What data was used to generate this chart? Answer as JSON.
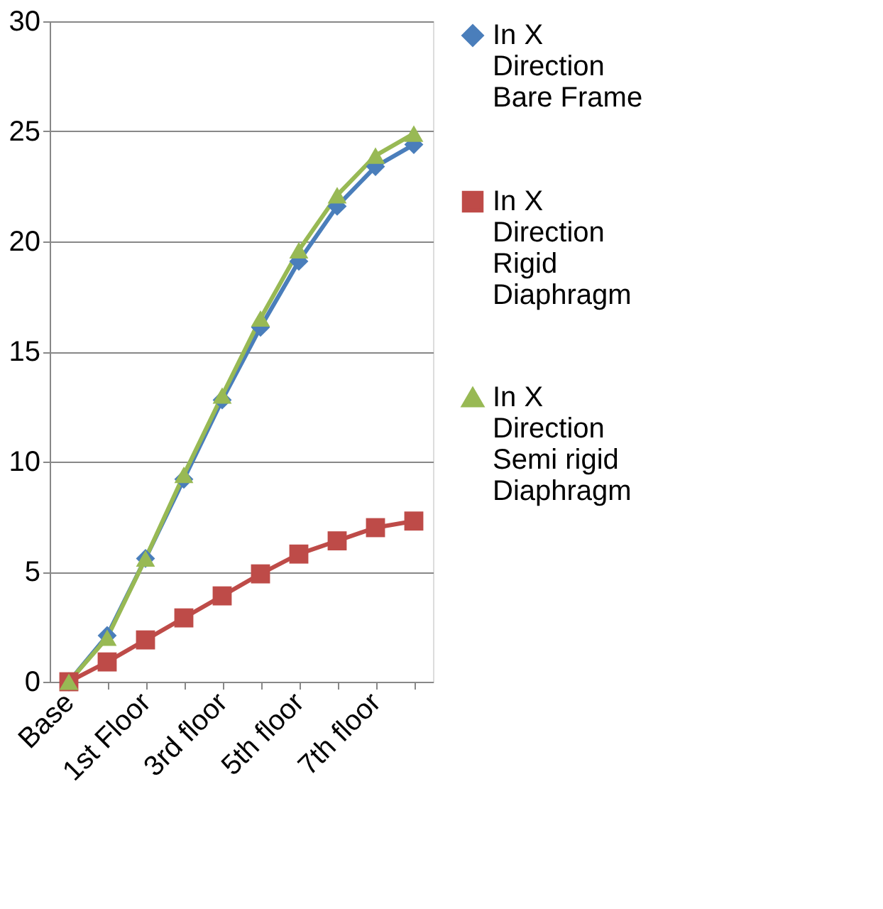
{
  "chart_data": {
    "type": "line",
    "categories": [
      "Base",
      null,
      "1st Floor",
      null,
      "3rd floor",
      null,
      "5th floor",
      null,
      "7th floor",
      null
    ],
    "series": [
      {
        "name": "In X Direction Bare Frame",
        "color": "#4a7ebb",
        "marker": "diamond",
        "values": [
          0,
          2.1,
          5.6,
          9.2,
          12.8,
          16.1,
          19.1,
          21.6,
          23.4,
          24.4
        ]
      },
      {
        "name": "In X Direction Rigid Diaphragm",
        "color": "#be4b48",
        "marker": "square",
        "values": [
          0,
          0.9,
          1.9,
          2.9,
          3.9,
          4.9,
          5.8,
          6.4,
          7.0,
          7.3
        ]
      },
      {
        "name": "In X Direction Semi rigid Diaphragm",
        "color": "#98b954",
        "marker": "triangle",
        "values": [
          0,
          2.0,
          5.6,
          9.4,
          13.0,
          16.5,
          19.6,
          22.1,
          23.9,
          24.9
        ]
      }
    ],
    "ylim": [
      0,
      30
    ],
    "yticks": [
      0,
      5,
      10,
      15,
      20,
      25,
      30
    ],
    "grid": "y",
    "legend": "right",
    "line_style": "solid"
  }
}
